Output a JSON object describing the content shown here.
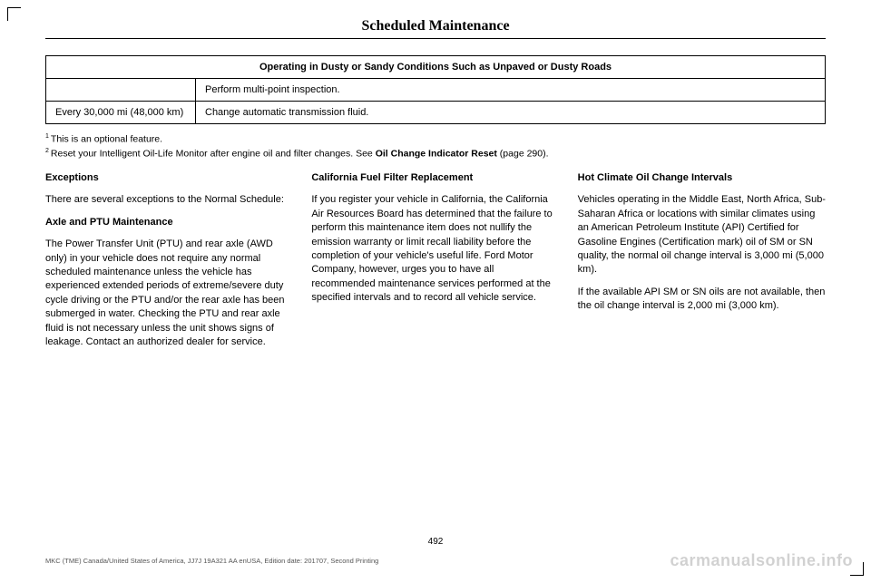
{
  "header": {
    "title": "Scheduled Maintenance"
  },
  "table": {
    "caption": "Operating in Dusty or Sandy Conditions Such as Unpaved or Dusty Roads",
    "rows": [
      {
        "interval": "",
        "task": "Perform multi-point inspection."
      },
      {
        "interval": "Every 30,000 mi (48,000 km)",
        "task": "Change automatic transmission fluid."
      }
    ]
  },
  "footnotes": {
    "f1_sup": "1",
    "f1": "This is an optional feature.",
    "f2_sup": "2",
    "f2_a": "Reset your Intelligent Oil-Life Monitor after engine oil and filter changes.  See ",
    "f2_b": "Oil Change Indicator Reset",
    "f2_c": " (page 290)."
  },
  "columns": {
    "left": {
      "h1": "Exceptions",
      "p1": "There are several exceptions to the Normal Schedule:",
      "h2": "Axle and PTU Maintenance",
      "p2": "The Power Transfer Unit (PTU) and rear axle (AWD only) in your vehicle does not require any normal scheduled maintenance unless the vehicle has experienced extended periods of extreme/severe duty cycle driving or the PTU and/or the rear axle has been submerged in water. Checking the PTU and rear axle fluid is not necessary unless the unit shows signs of leakage. Contact an authorized dealer for service."
    },
    "middle": {
      "h1": "California Fuel Filter Replacement",
      "p1": "If you register your vehicle in California, the California Air Resources Board has determined that the failure to perform this maintenance item does not nullify the emission warranty or limit recall liability before the completion of your vehicle's useful life. Ford Motor Company, however, urges you to have all recommended maintenance services performed at the specified intervals and to record all vehicle service."
    },
    "right": {
      "h1": "Hot Climate Oil Change Intervals",
      "p1": "Vehicles operating in the Middle East, North Africa, Sub-Saharan Africa or locations with similar climates using an American Petroleum Institute (API) Certified for Gasoline Engines (Certification mark) oil of SM or SN quality, the normal oil change interval is 3,000 mi (5,000 km).",
      "p2": "If the available API SM or SN oils are not available, then the oil change interval is 2,000 mi (3,000 km)."
    }
  },
  "page_number": "492",
  "pub_line": "MKC (TME) Canada/United States of America, JJ7J 19A321 AA enUSA, Edition date: 201707, Second Printing",
  "watermark": "carmanualsonline.info"
}
